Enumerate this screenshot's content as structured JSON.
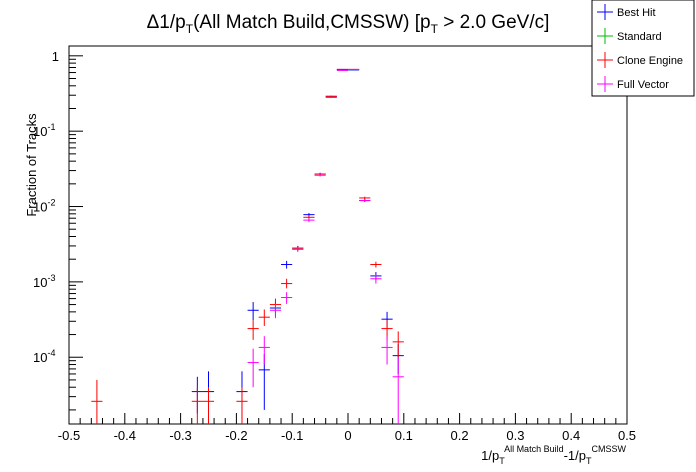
{
  "chart_data": {
    "type": "scatter",
    "title": {
      "delta": "Δ1/p",
      "delta_sub": "T",
      "middle": "(All Match Build,CMSSW) [p",
      "pt_sub": "T",
      "tail": " > 2.0 GeV/c]"
    },
    "ylabel": "Fraction of Tracks",
    "xlabel": {
      "a": "1/p",
      "a_sub": "T",
      "a_sup": "All Match Build",
      "b": "-1/p",
      "b_sub": "T",
      "b_sup": "CMSSW"
    },
    "xlim": [
      -0.5,
      0.5
    ],
    "ylim": [
      1.3e-05,
      1.35
    ],
    "yscale": "log",
    "grid": false,
    "legend_position": "top-right",
    "bin_width": 0.02,
    "x_ticks": [
      "-0.5",
      "-0.4",
      "-0.3",
      "-0.2",
      "-0.1",
      "0",
      "0.1",
      "0.2",
      "0.3",
      "0.4",
      "0.5"
    ],
    "y_ticks": [
      {
        "value": 1,
        "base": "1",
        "exp": ""
      },
      {
        "value": 0.1,
        "base": "10",
        "exp": "-1"
      },
      {
        "value": 0.01,
        "base": "10",
        "exp": "-2"
      },
      {
        "value": 0.001,
        "base": "10",
        "exp": "-3"
      },
      {
        "value": 0.0001,
        "base": "10",
        "exp": "-4"
      }
    ],
    "series": [
      {
        "name": "Best Hit",
        "color": "#0000ff",
        "points": [
          {
            "x": -0.27,
            "y": 3.5e-05,
            "lo": 1.8e-05,
            "hi": 5.5e-05
          },
          {
            "x": -0.25,
            "y": 3.5e-05,
            "lo": 1.5e-05,
            "hi": 6.5e-05
          },
          {
            "x": -0.19,
            "y": 3.5e-05,
            "lo": 1.5e-05,
            "hi": 6.5e-05
          },
          {
            "x": -0.17,
            "y": 0.00042,
            "lo": 0.00031,
            "hi": 0.00054
          },
          {
            "x": -0.15,
            "y": 6.8e-05,
            "lo": 2e-05,
            "hi": 0.00011
          },
          {
            "x": -0.13,
            "y": 0.00045,
            "lo": 0.00035,
            "hi": 0.00055
          },
          {
            "x": -0.11,
            "y": 0.0017,
            "lo": 0.0015,
            "hi": 0.0019
          },
          {
            "x": -0.09,
            "y": 0.0028,
            "lo": 0.0026,
            "hi": 0.003
          },
          {
            "x": -0.07,
            "y": 0.0078,
            "lo": 0.0074,
            "hi": 0.0082
          },
          {
            "x": -0.05,
            "y": 0.027,
            "lo": 0.026,
            "hi": 0.028
          },
          {
            "x": -0.03,
            "y": 0.29,
            "lo": 0.285,
            "hi": 0.295
          },
          {
            "x": -0.01,
            "y": 0.66,
            "lo": 0.655,
            "hi": 0.665
          },
          {
            "x": 0.01,
            "y": 0.65,
            "lo": 0.645,
            "hi": 0.655
          },
          {
            "x": 0.03,
            "y": 0.012,
            "lo": 0.0115,
            "hi": 0.0125
          },
          {
            "x": 0.05,
            "y": 0.0012,
            "lo": 0.00105,
            "hi": 0.00135
          },
          {
            "x": 0.07,
            "y": 0.00032,
            "lo": 0.00024,
            "hi": 0.0004
          },
          {
            "x": 0.09,
            "y": 0.000105,
            "lo": 6e-05,
            "hi": 0.00015
          }
        ]
      },
      {
        "name": "Standard",
        "color": "#00bb00",
        "points": []
      },
      {
        "name": "Clone Engine",
        "color": "#ff0000",
        "points": [
          {
            "x": -0.45,
            "y": 2.6e-05,
            "lo": 1.3e-05,
            "hi": 5e-05
          },
          {
            "x": -0.27,
            "y": 2.6e-05,
            "lo": 1.3e-05,
            "hi": 4e-05
          },
          {
            "x": -0.25,
            "y": 2.6e-05,
            "lo": 1.3e-05,
            "hi": 4e-05
          },
          {
            "x": -0.19,
            "y": 2.6e-05,
            "lo": 1.3e-05,
            "hi": 4e-05
          },
          {
            "x": -0.17,
            "y": 0.00024,
            "lo": 0.00017,
            "hi": 0.00031
          },
          {
            "x": -0.15,
            "y": 0.00034,
            "lo": 0.00026,
            "hi": 0.00043
          },
          {
            "x": -0.13,
            "y": 0.0005,
            "lo": 0.0004,
            "hi": 0.0006
          },
          {
            "x": -0.11,
            "y": 0.00095,
            "lo": 0.00082,
            "hi": 0.0011
          },
          {
            "x": -0.09,
            "y": 0.0028,
            "lo": 0.0026,
            "hi": 0.003
          },
          {
            "x": -0.07,
            "y": 0.0072,
            "lo": 0.0068,
            "hi": 0.0076
          },
          {
            "x": -0.05,
            "y": 0.027,
            "lo": 0.026,
            "hi": 0.028
          },
          {
            "x": -0.03,
            "y": 0.29,
            "lo": 0.285,
            "hi": 0.295
          },
          {
            "x": -0.01,
            "y": 0.66,
            "lo": 0.655,
            "hi": 0.665
          },
          {
            "x": 0.01,
            "y": 0.66,
            "lo": 0.655,
            "hi": 0.665
          },
          {
            "x": 0.03,
            "y": 0.013,
            "lo": 0.0125,
            "hi": 0.0135
          },
          {
            "x": 0.05,
            "y": 0.0017,
            "lo": 0.00155,
            "hi": 0.00185
          },
          {
            "x": 0.07,
            "y": 0.00024,
            "lo": 0.00017,
            "hi": 0.00031
          },
          {
            "x": 0.09,
            "y": 0.00016,
            "lo": 0.0001,
            "hi": 0.00022
          }
        ]
      },
      {
        "name": "Full Vector",
        "color": "#ff00ff",
        "points": [
          {
            "x": -0.17,
            "y": 8.5e-05,
            "lo": 4e-05,
            "hi": 0.00013
          },
          {
            "x": -0.15,
            "y": 0.000135,
            "lo": 8e-05,
            "hi": 0.00019
          },
          {
            "x": -0.13,
            "y": 0.00042,
            "lo": 0.00033,
            "hi": 0.00051
          },
          {
            "x": -0.11,
            "y": 0.00062,
            "lo": 0.00051,
            "hi": 0.00073
          },
          {
            "x": -0.09,
            "y": 0.0027,
            "lo": 0.0025,
            "hi": 0.0029
          },
          {
            "x": -0.07,
            "y": 0.0066,
            "lo": 0.0062,
            "hi": 0.007
          },
          {
            "x": -0.05,
            "y": 0.026,
            "lo": 0.025,
            "hi": 0.027
          },
          {
            "x": -0.03,
            "y": 0.28,
            "lo": 0.275,
            "hi": 0.285
          },
          {
            "x": -0.01,
            "y": 0.64,
            "lo": 0.635,
            "hi": 0.645
          },
          {
            "x": 0.01,
            "y": 0.66,
            "lo": 0.655,
            "hi": 0.665
          },
          {
            "x": 0.03,
            "y": 0.012,
            "lo": 0.0115,
            "hi": 0.0125
          },
          {
            "x": 0.05,
            "y": 0.0011,
            "lo": 0.00095,
            "hi": 0.00125
          },
          {
            "x": 0.07,
            "y": 0.000135,
            "lo": 8e-05,
            "hi": 0.00019
          },
          {
            "x": 0.09,
            "y": 5.5e-05,
            "lo": 1.3e-05,
            "hi": 0.0001
          }
        ]
      }
    ]
  }
}
